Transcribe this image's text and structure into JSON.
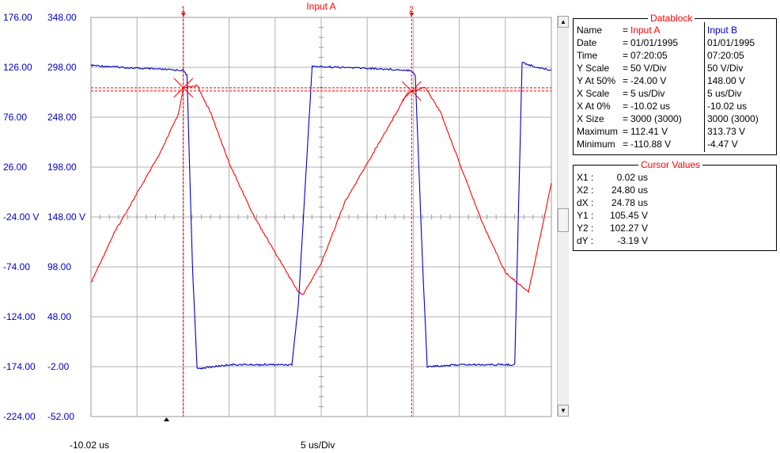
{
  "chart_data": {
    "type": "line",
    "title": "Input A",
    "x_start_label": "-10.02 us",
    "x_scale_label": "5 us/Div",
    "x_divisions": 10,
    "left_axis_ticks": [
      "176.00",
      "126.00",
      "76.00",
      "26.00",
      "-24.00 V",
      "-74.00",
      "-124.00",
      "-174.00",
      "-224.00"
    ],
    "right_axis_ticks": [
      "348.00",
      "298.00",
      "248.00",
      "198.00",
      "148.00 V",
      "98.00",
      "48.00",
      "-2.00",
      "-52.00"
    ],
    "ylim_a": [
      -224,
      176
    ],
    "ylim_b": [
      -52,
      348
    ],
    "xlim_us": [
      -10.02,
      39.98
    ],
    "grid": true,
    "series": [
      {
        "name": "Input A",
        "color": "#ff0000",
        "x": [
          -10.02,
          -7.5,
          -5.0,
          -2.5,
          -0.5,
          0.0,
          1.5,
          3.0,
          5.0,
          7.5,
          10.0,
          12.5,
          13.0,
          15.0,
          17.5,
          20.0,
          22.5,
          24.3,
          24.8,
          26.3,
          28.0,
          30.0,
          32.5,
          35.0,
          37.5,
          39.98
        ],
        "values": [
          -90,
          -40,
          0,
          40,
          80,
          105,
          108,
          80,
          30,
          -20,
          -60,
          -99,
          -102,
          -70,
          -10,
          30,
          70,
          100,
          102,
          106,
          80,
          30,
          -30,
          -80,
          -99,
          10
        ]
      },
      {
        "name": "Input B",
        "color": "#0000c8",
        "x": [
          -10.02,
          -5.0,
          0.0,
          0.4,
          1.0,
          1.5,
          5.0,
          10.0,
          11.8,
          12.5,
          14.0,
          20.0,
          24.8,
          25.2,
          26.0,
          26.5,
          30.0,
          35.0,
          36.0,
          36.8,
          38.0,
          39.98
        ],
        "values": [
          300,
          297,
          295,
          290,
          100,
          -4,
          0,
          0,
          0,
          60,
          299,
          297,
          295,
          290,
          100,
          -2,
          0,
          0,
          0,
          303,
          299,
          295
        ]
      }
    ],
    "cursors": [
      {
        "label": "1",
        "x_us": 0.02
      },
      {
        "label": "2",
        "x_us": 24.8
      }
    ],
    "cursor_levels_a": [
      105.45,
      102.27
    ]
  },
  "datablock": {
    "title": "Datablock",
    "rows": [
      {
        "label": "Name",
        "eq": "=",
        "a": "Input A",
        "b": "Input B"
      },
      {
        "label": "Date",
        "eq": "=",
        "a": "01/01/1995",
        "b": "01/01/1995"
      },
      {
        "label": "Time",
        "eq": "=",
        "a": "07:20:05",
        "b": "07:20:05"
      },
      {
        "label": "Y Scale",
        "eq": "=",
        "a": "50    V/Div",
        "b": "50    V/Div"
      },
      {
        "label": "Y At 50%",
        "eq": "=",
        "a": "-24.00 V",
        "b": "148.00 V"
      },
      {
        "label": "X Scale",
        "eq": "=",
        "a": "5    us/Div",
        "b": "5    us/Div"
      },
      {
        "label": "X At 0%",
        "eq": "=",
        "a": "-10.02 us",
        "b": "-10.02 us"
      },
      {
        "label": "X Size",
        "eq": "=",
        "a": "3000 (3000)",
        "b": "3000 (3000)"
      },
      {
        "label": "Maximum",
        "eq": "=",
        "a": "112.41 V",
        "b": "313.73 V"
      },
      {
        "label": "Minimum",
        "eq": "=",
        "a": "-110.88 V",
        "b": "-4.47 V"
      }
    ]
  },
  "cursor_values": {
    "title": "Cursor Values",
    "rows": [
      {
        "label": "X1 :",
        "value": "0.02 us"
      },
      {
        "label": "X2 :",
        "value": "24.80 us"
      },
      {
        "label": "dX :",
        "value": "24.78 us"
      },
      {
        "label": "Y1 :",
        "value": "105.45 V"
      },
      {
        "label": "Y2 :",
        "value": "102.27 V"
      },
      {
        "label": "dY :",
        "value": "-3.19 V"
      }
    ]
  }
}
